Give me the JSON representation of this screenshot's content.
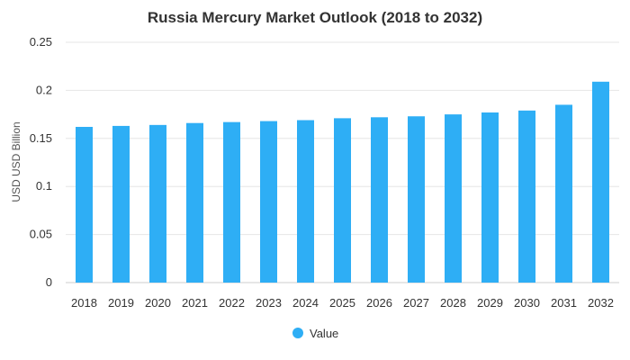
{
  "chart_data": {
    "type": "bar",
    "title": "Russia Mercury Market Outlook (2018 to 2032)",
    "xlabel": "",
    "ylabel": "USD USD Billion",
    "categories": [
      "2018",
      "2019",
      "2020",
      "2021",
      "2022",
      "2023",
      "2024",
      "2025",
      "2026",
      "2027",
      "2028",
      "2029",
      "2030",
      "2031",
      "2032"
    ],
    "series": [
      {
        "name": "Value",
        "values": [
          0.162,
          0.163,
          0.164,
          0.166,
          0.167,
          0.168,
          0.169,
          0.171,
          0.172,
          0.173,
          0.175,
          0.177,
          0.179,
          0.185,
          0.209
        ]
      }
    ],
    "ylim": [
      0,
      0.25
    ],
    "yticks": [
      "0",
      "0.05",
      "0.1",
      "0.15",
      "0.2",
      "0.25"
    ],
    "grid": true,
    "legend_position": "bottom-center",
    "colors": {
      "bar": "#2eaef5"
    }
  }
}
